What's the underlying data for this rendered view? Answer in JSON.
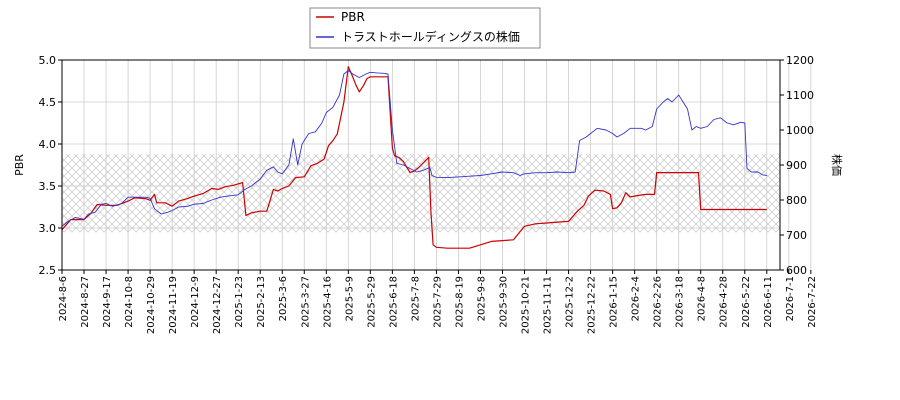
{
  "chart_data": {
    "type": "line",
    "grid": true,
    "legend_placement": "top-center",
    "ylabel_left": "PBR",
    "ylabel_right": "株価",
    "ylim_left": [
      2.5,
      5.0
    ],
    "ylim_right": [
      600,
      1200
    ],
    "yticks_left": [
      "2.5",
      "3.0",
      "3.5",
      "4.0",
      "4.5",
      "5.0"
    ],
    "yticks_right": [
      "600",
      "700",
      "800",
      "900",
      "1000",
      "1100",
      "1200"
    ],
    "x_ticks": [
      "2024-8-6",
      "2024-8-27",
      "2024-9-17",
      "2024-10-8",
      "2024-10-29",
      "2024-11-19",
      "2024-12-9",
      "2024-12-27",
      "2025-1-23",
      "2025-2-13",
      "2025-3-6",
      "2025-3-27",
      "2025-4-16",
      "2025-5-9",
      "2025-5-29",
      "2025-6-18",
      "2025-7-8",
      "2025-7-29",
      "2025-8-19",
      "2025-9-8",
      "2025-9-30",
      "2025-10-21",
      "2025-11-11",
      "2025-12-2",
      "2025-12-22",
      "2026-1-15",
      "2026-2-4",
      "2026-2-26",
      "2026-3-18",
      "2026-4-8",
      "2026-4-28",
      "2026-5-22",
      "2026-6-11",
      "2026-7-1",
      "2026-7-22"
    ],
    "band": {
      "axis": "left",
      "from": 2.95,
      "to": 3.88,
      "pattern": "crosshatch"
    },
    "series": [
      {
        "name": "PBR",
        "axis": "left",
        "color": "#cc0000",
        "points": [
          [
            0,
            2.98
          ],
          [
            0.4,
            3.1
          ],
          [
            1,
            3.1
          ],
          [
            1.3,
            3.17
          ],
          [
            1.6,
            3.28
          ],
          [
            2,
            3.27
          ],
          [
            2.5,
            3.27
          ],
          [
            3,
            3.32
          ],
          [
            3.3,
            3.36
          ],
          [
            3.8,
            3.35
          ],
          [
            4,
            3.33
          ],
          [
            4.2,
            3.4
          ],
          [
            4.3,
            3.3
          ],
          [
            4.7,
            3.3
          ],
          [
            5,
            3.26
          ],
          [
            5.3,
            3.32
          ],
          [
            5.7,
            3.35
          ],
          [
            6,
            3.38
          ],
          [
            6.4,
            3.41
          ],
          [
            6.8,
            3.47
          ],
          [
            7.1,
            3.46
          ],
          [
            7.4,
            3.49
          ],
          [
            7.8,
            3.51
          ],
          [
            8.2,
            3.54
          ],
          [
            8.35,
            3.15
          ],
          [
            8.6,
            3.18
          ],
          [
            9,
            3.2
          ],
          [
            9.3,
            3.2
          ],
          [
            9.6,
            3.46
          ],
          [
            9.8,
            3.44
          ],
          [
            10,
            3.47
          ],
          [
            10.3,
            3.5
          ],
          [
            10.6,
            3.6
          ],
          [
            11,
            3.61
          ],
          [
            11.3,
            3.74
          ],
          [
            11.6,
            3.77
          ],
          [
            11.9,
            3.82
          ],
          [
            12.1,
            3.98
          ],
          [
            12.3,
            4.04
          ],
          [
            12.5,
            4.12
          ],
          [
            12.8,
            4.5
          ],
          [
            13,
            4.92
          ],
          [
            13.2,
            4.8
          ],
          [
            13.35,
            4.7
          ],
          [
            13.5,
            4.62
          ],
          [
            13.7,
            4.7
          ],
          [
            13.85,
            4.78
          ],
          [
            14,
            4.8
          ],
          [
            14.3,
            4.8
          ],
          [
            14.6,
            4.8
          ],
          [
            14.8,
            4.8
          ],
          [
            15,
            3.95
          ],
          [
            15.1,
            3.86
          ],
          [
            15.3,
            3.84
          ],
          [
            15.5,
            3.79
          ],
          [
            15.8,
            3.66
          ],
          [
            16,
            3.68
          ],
          [
            16.2,
            3.72
          ],
          [
            16.5,
            3.8
          ],
          [
            16.65,
            3.84
          ],
          [
            16.75,
            3.2
          ],
          [
            16.85,
            2.8
          ],
          [
            17,
            2.77
          ],
          [
            17.5,
            2.76
          ],
          [
            18,
            2.76
          ],
          [
            18.5,
            2.76
          ],
          [
            19,
            2.8
          ],
          [
            19.5,
            2.84
          ],
          [
            20,
            2.85
          ],
          [
            20.5,
            2.86
          ],
          [
            21,
            3.02
          ],
          [
            21.5,
            3.05
          ],
          [
            22,
            3.06
          ],
          [
            22.5,
            3.07
          ],
          [
            23,
            3.08
          ],
          [
            23.4,
            3.2
          ],
          [
            23.7,
            3.27
          ],
          [
            23.9,
            3.38
          ],
          [
            24.2,
            3.45
          ],
          [
            24.6,
            3.44
          ],
          [
            24.9,
            3.4
          ],
          [
            25,
            3.23
          ],
          [
            25.2,
            3.24
          ],
          [
            25.4,
            3.3
          ],
          [
            25.6,
            3.42
          ],
          [
            25.8,
            3.37
          ],
          [
            26,
            3.38
          ],
          [
            26.5,
            3.4
          ],
          [
            26.9,
            3.4
          ],
          [
            27,
            3.66
          ],
          [
            27.5,
            3.66
          ],
          [
            28,
            3.66
          ],
          [
            28.5,
            3.66
          ],
          [
            28.9,
            3.66
          ],
          [
            29,
            3.22
          ],
          [
            29.5,
            3.22
          ],
          [
            30,
            3.22
          ],
          [
            30.5,
            3.22
          ],
          [
            31,
            3.22
          ],
          [
            31.5,
            3.22
          ],
          [
            32,
            3.22
          ]
        ]
      },
      {
        "name": "トラストホールディングスの株価",
        "axis": "right",
        "color": "#3333cc",
        "points": [
          [
            0,
            725
          ],
          [
            0.3,
            740
          ],
          [
            0.6,
            750
          ],
          [
            1,
            745
          ],
          [
            1.2,
            760
          ],
          [
            1.5,
            765
          ],
          [
            1.8,
            788
          ],
          [
            2,
            790
          ],
          [
            2.3,
            782
          ],
          [
            2.7,
            790
          ],
          [
            3,
            808
          ],
          [
            3.4,
            808
          ],
          [
            3.8,
            808
          ],
          [
            4,
            805
          ],
          [
            4.2,
            775
          ],
          [
            4.5,
            760
          ],
          [
            4.8,
            765
          ],
          [
            5,
            770
          ],
          [
            5.3,
            780
          ],
          [
            5.7,
            782
          ],
          [
            6,
            788
          ],
          [
            6.4,
            790
          ],
          [
            6.8,
            800
          ],
          [
            7.2,
            808
          ],
          [
            7.6,
            812
          ],
          [
            8,
            815
          ],
          [
            8.3,
            830
          ],
          [
            8.6,
            840
          ],
          [
            9,
            860
          ],
          [
            9.3,
            885
          ],
          [
            9.6,
            895
          ],
          [
            9.8,
            880
          ],
          [
            10,
            875
          ],
          [
            10.3,
            900
          ],
          [
            10.5,
            975
          ],
          [
            10.7,
            900
          ],
          [
            10.9,
            960
          ],
          [
            11.2,
            990
          ],
          [
            11.5,
            995
          ],
          [
            11.8,
            1020
          ],
          [
            12,
            1050
          ],
          [
            12.3,
            1065
          ],
          [
            12.6,
            1100
          ],
          [
            12.8,
            1160
          ],
          [
            13,
            1170
          ],
          [
            13.2,
            1160
          ],
          [
            13.5,
            1150
          ],
          [
            13.8,
            1160
          ],
          [
            14,
            1165
          ],
          [
            14.3,
            1163
          ],
          [
            14.6,
            1162
          ],
          [
            14.8,
            1160
          ],
          [
            15,
            1000
          ],
          [
            15.2,
            905
          ],
          [
            15.5,
            900
          ],
          [
            15.8,
            890
          ],
          [
            16.1,
            880
          ],
          [
            16.4,
            885
          ],
          [
            16.7,
            893
          ],
          [
            16.8,
            870
          ],
          [
            17,
            865
          ],
          [
            17.5,
            864
          ],
          [
            18,
            866
          ],
          [
            18.5,
            868
          ],
          [
            19,
            870
          ],
          [
            19.5,
            875
          ],
          [
            20,
            880
          ],
          [
            20.5,
            878
          ],
          [
            20.8,
            870
          ],
          [
            21,
            875
          ],
          [
            21.5,
            878
          ],
          [
            22,
            878
          ],
          [
            22.5,
            880
          ],
          [
            23,
            878
          ],
          [
            23.3,
            880
          ],
          [
            23.5,
            970
          ],
          [
            23.8,
            980
          ],
          [
            24,
            990
          ],
          [
            24.3,
            1005
          ],
          [
            24.7,
            1000
          ],
          [
            25,
            990
          ],
          [
            25.2,
            980
          ],
          [
            25.5,
            990
          ],
          [
            25.8,
            1005
          ],
          [
            26,
            1005
          ],
          [
            26.3,
            1005
          ],
          [
            26.5,
            1000
          ],
          [
            26.8,
            1010
          ],
          [
            27,
            1060
          ],
          [
            27.3,
            1080
          ],
          [
            27.5,
            1090
          ],
          [
            27.7,
            1080
          ],
          [
            28,
            1100
          ],
          [
            28.2,
            1080
          ],
          [
            28.4,
            1060
          ],
          [
            28.6,
            1000
          ],
          [
            28.8,
            1010
          ],
          [
            29,
            1005
          ],
          [
            29.3,
            1010
          ],
          [
            29.6,
            1030
          ],
          [
            29.9,
            1035
          ],
          [
            30.2,
            1020
          ],
          [
            30.5,
            1015
          ],
          [
            30.8,
            1022
          ],
          [
            31,
            1020
          ],
          [
            31.1,
            890
          ],
          [
            31.3,
            880
          ],
          [
            31.6,
            880
          ],
          [
            31.8,
            872
          ],
          [
            32,
            870
          ]
        ]
      }
    ]
  }
}
